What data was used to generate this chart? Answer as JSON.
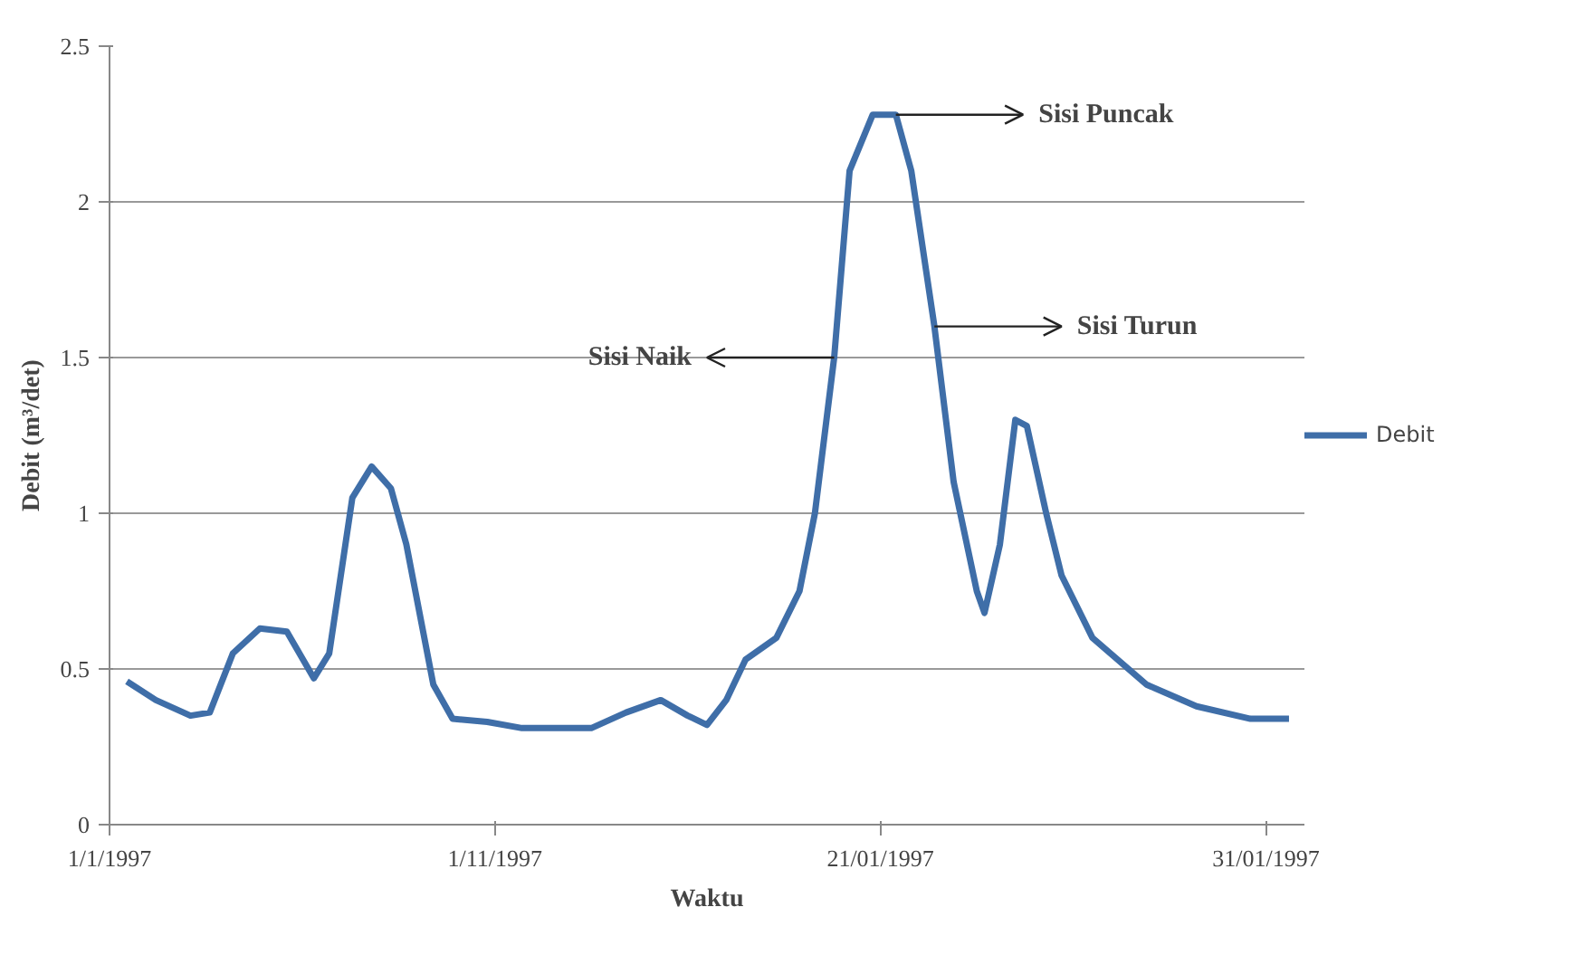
{
  "chart_data": {
    "type": "line",
    "xlabel": "Waktu",
    "ylabel": "Debit (m³/det)",
    "xlim": [
      "1997-01-01",
      "1997-02-01"
    ],
    "xticks": [
      {
        "value": "1997-01-01",
        "label": "1/1/1997"
      },
      {
        "value": "1997-01-11",
        "label": "1/11/1997"
      },
      {
        "value": "1997-01-21",
        "label": "21/01/1997"
      },
      {
        "value": "1997-01-31",
        "label": "31/01/1997"
      }
    ],
    "ylim": [
      0,
      2.5
    ],
    "yticks": [
      0,
      0.5,
      1,
      1.5,
      2,
      2.5
    ],
    "grid": "y",
    "legend": "right",
    "line_style": "solid",
    "series": [
      {
        "name": "Debit",
        "color": "#3f6ea8",
        "x": [
          "1997-01-01T10:48",
          "1997-01-02T04:48",
          "1997-01-03T02:24",
          "1997-01-03T14:24",
          "1997-01-04T04:48",
          "1997-01-04T21:36",
          "1997-01-05T14:24",
          "1997-01-06T07:12",
          "1997-01-06T16:48",
          "1997-01-07T07:12",
          "1997-01-07T19:12",
          "1997-01-08T07:12",
          "1997-01-08T16:48",
          "1997-01-09T09:36",
          "1997-01-09T21:36",
          "1997-01-10T19:12",
          "1997-01-11T16:48",
          "1997-01-13T12:00",
          "1997-01-14T09:36",
          "1997-01-15T07:12",
          "1997-01-16T00:00",
          "1997-01-16T12:00",
          "1997-01-17T00:00",
          "1997-01-17T12:00",
          "1997-01-18T07:12",
          "1997-01-18T21:36",
          "1997-01-19T07:12",
          "1997-01-19T19:12",
          "1997-01-20T04:48",
          "1997-01-20T19:12",
          "1997-01-21T09:36",
          "1997-01-21T19:12",
          "1997-01-22T09:36",
          "1997-01-22T21:36",
          "1997-01-23T12:00",
          "1997-01-23T16:48",
          "1997-01-24T02:24",
          "1997-01-24T12:00",
          "1997-01-24T19:12",
          "1997-01-25T07:12",
          "1997-01-25T16:48",
          "1997-01-26T12:00",
          "1997-01-27T21:36",
          "1997-01-29T04:48",
          "1997-01-30T14:24",
          "1997-01-31T14:24"
        ],
        "values": [
          0.46,
          0.4,
          0.35,
          0.36,
          0.55,
          0.63,
          0.62,
          0.47,
          0.55,
          1.05,
          1.15,
          1.08,
          0.9,
          0.45,
          0.34,
          0.33,
          0.31,
          0.31,
          0.36,
          0.4,
          0.35,
          0.32,
          0.4,
          0.53,
          0.6,
          0.75,
          1.0,
          1.5,
          2.1,
          2.28,
          2.28,
          2.1,
          1.6,
          1.1,
          0.75,
          0.68,
          0.9,
          1.3,
          1.28,
          1.0,
          0.8,
          0.6,
          0.45,
          0.38,
          0.34,
          0.34
        ]
      }
    ],
    "annotations": [
      {
        "text": "Sisi Puncak",
        "x": "1997-01-21T09:36",
        "y": 2.28
      },
      {
        "text": "Sisi Turun",
        "x": "1997-01-22T09:36",
        "y": 1.6
      },
      {
        "text": "Sisi Naik",
        "x": "1997-01-19T19:12",
        "y": 1.5
      }
    ]
  }
}
